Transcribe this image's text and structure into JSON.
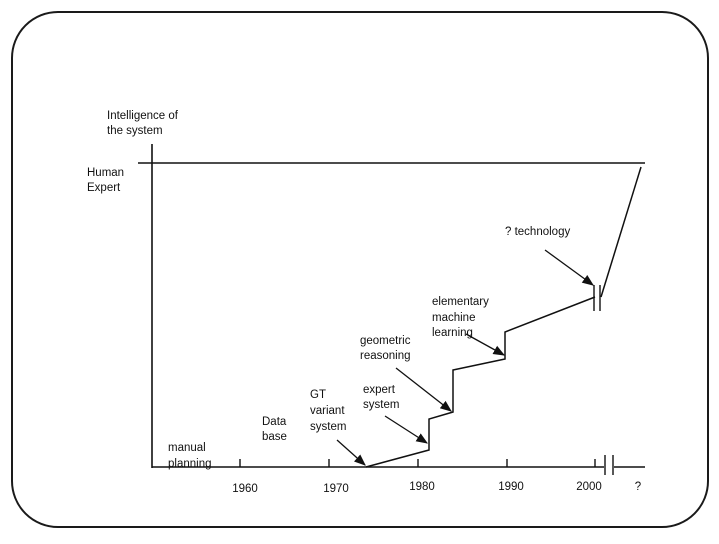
{
  "diagram": {
    "y_axis_label": [
      "Intelligence of",
      "the system"
    ],
    "y_level_label": [
      "Human",
      "Expert"
    ],
    "x_ticks": [
      "1960",
      "1970",
      "1980",
      "1990",
      "2000",
      "?"
    ],
    "annotations": {
      "manual_planning": [
        "manual",
        "planning"
      ],
      "data_base": [
        "Data",
        "base"
      ],
      "gt_variant": [
        "GT",
        "variant",
        "system"
      ],
      "expert_system": [
        "expert",
        "system"
      ],
      "geometric_reasoning": [
        "geometric",
        "reasoning"
      ],
      "machine_learning": [
        "elementary",
        "machine",
        "learning"
      ],
      "technology": [
        "? technology"
      ]
    },
    "colors": {
      "ink": "#111111",
      "frame": "#1a1a1a",
      "background": "#ffffff"
    }
  }
}
